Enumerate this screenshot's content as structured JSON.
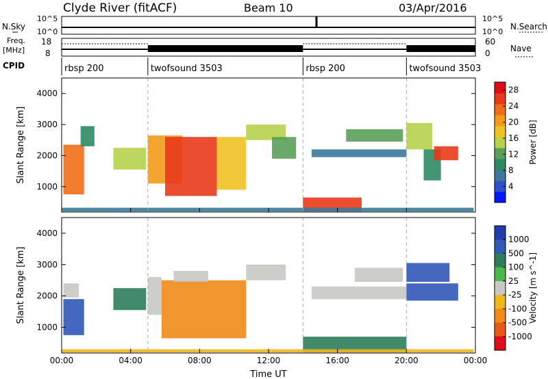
{
  "header": {
    "station": "Clyde River (fitACF)",
    "beam": "Beam 10",
    "date": "03/Apr/2016"
  },
  "strip": {
    "nsky_label": "N.Sky",
    "nsky_ticks": [
      "10^5",
      "10^0"
    ],
    "nsearch_label": "N.Search",
    "nsearch_ticks": [
      "10^5",
      "10^0"
    ],
    "freq_label_1": "Freq.",
    "freq_label_2": "[MHz]",
    "freq_ticks": [
      "18",
      "8"
    ],
    "nave_label": "Nave",
    "nave_ticks": [
      "60",
      "0"
    ],
    "cpid_label": "CPID",
    "cpid_segments": [
      {
        "label": "rbsp 200",
        "start_h": 0,
        "end_h": 5
      },
      {
        "label": "twofsound 3503",
        "start_h": 5,
        "end_h": 14
      },
      {
        "label": "rbsp 200",
        "start_h": 14,
        "end_h": 20
      },
      {
        "label": "twofsound 3503",
        "start_h": 20,
        "end_h": 24
      }
    ]
  },
  "chart_data": [
    {
      "type": "heatmap",
      "title": "",
      "xlabel": "Time UT",
      "ylabel": "Slant Range [km]",
      "xlim_hours": [
        0,
        24
      ],
      "ylim": [
        180,
        4500
      ],
      "yticks": [
        "1000",
        "2000",
        "3000",
        "4000"
      ],
      "colorbar_label": "Power [dB]",
      "colorbar_ticks": [
        "4",
        "8",
        "12",
        "16",
        "20",
        "24",
        "28"
      ],
      "colorbar_range": [
        0,
        30
      ],
      "colors": [
        "#0018ff",
        "#3050c8",
        "#3a7a9a",
        "#2e8a63",
        "#5aa05a",
        "#b6d14d",
        "#f1c226",
        "#f39a1a",
        "#ef6e17",
        "#e83a19",
        "#de0f1a"
      ],
      "patches": [
        {
          "t": [
            0.1,
            1.3
          ],
          "r": [
            750,
            2350
          ],
          "value": 22
        },
        {
          "t": [
            1.1,
            1.9
          ],
          "r": [
            2300,
            2950
          ],
          "value": 10
        },
        {
          "t": [
            3.0,
            4.9
          ],
          "r": [
            1550,
            2250
          ],
          "value": 14
        },
        {
          "t": [
            5.0,
            7.0
          ],
          "r": [
            1100,
            2650
          ],
          "value": 20
        },
        {
          "t": [
            6.0,
            9.0
          ],
          "r": [
            700,
            2600
          ],
          "value": 25
        },
        {
          "t": [
            9.0,
            10.7
          ],
          "r": [
            900,
            2600
          ],
          "value": 19
        },
        {
          "t": [
            10.7,
            13.0
          ],
          "r": [
            2500,
            3000
          ],
          "value": 14
        },
        {
          "t": [
            12.2,
            13.6
          ],
          "r": [
            1900,
            2600
          ],
          "value": 12
        },
        {
          "t": [
            14.0,
            17.4
          ],
          "r": [
            200,
            650
          ],
          "value": 26
        },
        {
          "t": [
            14.5,
            20.0
          ],
          "r": [
            1950,
            2200
          ],
          "value": 6
        },
        {
          "t": [
            16.5,
            19.8
          ],
          "r": [
            2450,
            2850
          ],
          "value": 13
        },
        {
          "t": [
            20.0,
            21.5
          ],
          "r": [
            2200,
            3050
          ],
          "value": 15
        },
        {
          "t": [
            21.0,
            22.0
          ],
          "r": [
            1200,
            2200
          ],
          "value": 10
        },
        {
          "t": [
            21.6,
            23.0
          ],
          "r": [
            1850,
            2300
          ],
          "value": 25
        },
        {
          "t": [
            0.0,
            23.9
          ],
          "r": [
            200,
            320
          ],
          "value": 6
        }
      ]
    },
    {
      "type": "heatmap",
      "title": "",
      "xlabel": "Time UT",
      "ylabel": "Slant Range [km]",
      "xlim_hours": [
        0,
        24
      ],
      "ylim": [
        180,
        4500
      ],
      "xticks": [
        "00:00",
        "04:00",
        "08:00",
        "12:00",
        "16:00",
        "20:00",
        "00:00"
      ],
      "yticks": [
        "1000",
        "2000",
        "3000",
        "4000"
      ],
      "colorbar_label": "Velocity [m s^-1]",
      "colorbar_ticks": [
        "1000",
        "500",
        "100",
        "25",
        "-25",
        "-100",
        "-500",
        "-1000"
      ],
      "colors": [
        "#1f3ea6",
        "#3058b8",
        "#2e7d5c",
        "#4db84a",
        "#c8c8c4",
        "#f0b71c",
        "#f08a1a",
        "#e85a17",
        "#de0f1a"
      ],
      "patches": [
        {
          "t": [
            0.1,
            1.3
          ],
          "r": [
            750,
            1900
          ],
          "value": 800
        },
        {
          "t": [
            0.1,
            1.0
          ],
          "r": [
            1950,
            2400
          ],
          "value": 0
        },
        {
          "t": [
            3.0,
            4.9
          ],
          "r": [
            1550,
            2250
          ],
          "value": 300
        },
        {
          "t": [
            5.0,
            5.8
          ],
          "r": [
            1400,
            2600
          ],
          "value": 0
        },
        {
          "t": [
            5.8,
            10.7
          ],
          "r": [
            650,
            2500
          ],
          "value": -400
        },
        {
          "t": [
            6.5,
            8.5
          ],
          "r": [
            2450,
            2800
          ],
          "value": 0
        },
        {
          "t": [
            10.7,
            13.0
          ],
          "r": [
            2500,
            3000
          ],
          "value": 0
        },
        {
          "t": [
            14.0,
            20.0
          ],
          "r": [
            200,
            700
          ],
          "value": 150
        },
        {
          "t": [
            14.5,
            20.0
          ],
          "r": [
            1900,
            2300
          ],
          "value": 0
        },
        {
          "t": [
            17.0,
            19.8
          ],
          "r": [
            2450,
            2900
          ],
          "value": 0
        },
        {
          "t": [
            20.0,
            22.5
          ],
          "r": [
            2450,
            3050
          ],
          "value": 700
        },
        {
          "t": [
            20.0,
            23.0
          ],
          "r": [
            1850,
            2400
          ],
          "value": 600
        },
        {
          "t": [
            0.0,
            23.9
          ],
          "r": [
            200,
            300
          ],
          "value": -60
        }
      ]
    }
  ]
}
